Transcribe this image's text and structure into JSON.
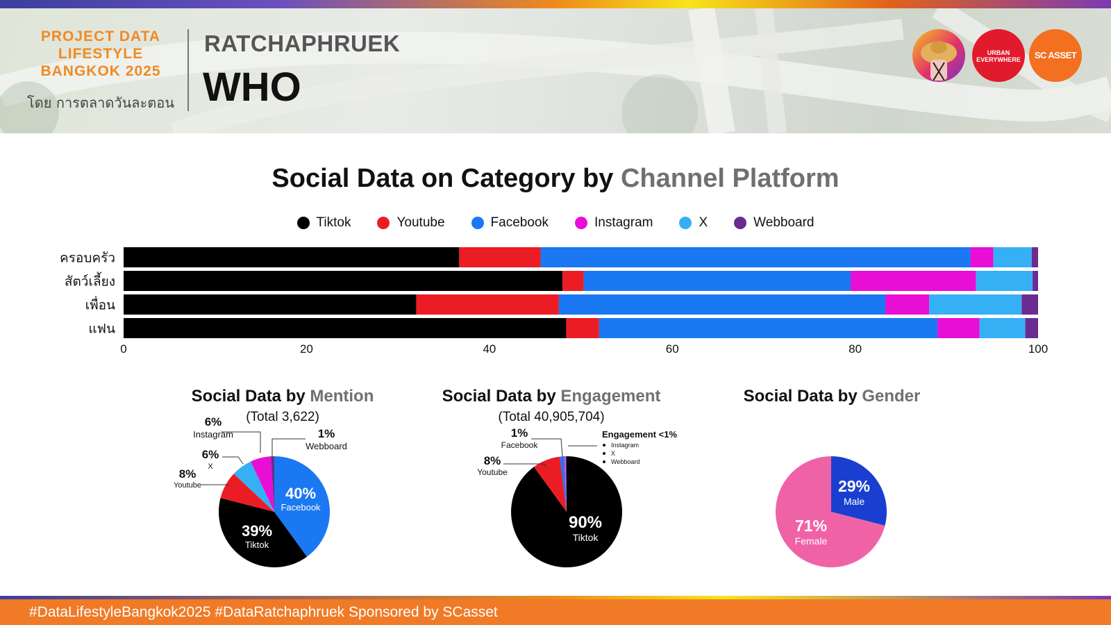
{
  "header": {
    "brand_lines": [
      "PROJECT DATA",
      "LIFESTYLE",
      "BANGKOK 2025"
    ],
    "brand_sub": "โดย การตลาดวันละตอน",
    "place": "RATCHAPHRUEK",
    "section": "WHO",
    "logos": [
      {
        "name": "creator-avatar-logo",
        "text": ""
      },
      {
        "name": "urban-everywhere-logo",
        "text": "URBAN EVERYWHERE"
      },
      {
        "name": "sc-asset-logo",
        "text": "SC ASSET"
      }
    ]
  },
  "main_title": {
    "prefix": "Social Data on Category by ",
    "highlight": "Channel Platform"
  },
  "colors": {
    "Tiktok": "#000000",
    "Youtube": "#ec1c24",
    "Facebook": "#1a78f2",
    "Instagram": "#e80ed6",
    "X": "#35b0f5",
    "Webboard": "#6b2c91",
    "Male": "#1a3fd0",
    "Female": "#f062a6"
  },
  "chart_data": [
    {
      "type": "bar",
      "stacked": true,
      "orientation": "horizontal",
      "title": "Social Data on Category by Channel Platform",
      "categories": [
        "ครอบครัว",
        "สัตว์เลี้ยง",
        "เพื่อน",
        "แฟน"
      ],
      "series": [
        {
          "name": "Tiktok",
          "values": [
            36.7,
            48.0,
            32.0,
            48.4
          ]
        },
        {
          "name": "Youtube",
          "values": [
            8.9,
            2.3,
            15.6,
            3.6
          ]
        },
        {
          "name": "Facebook",
          "values": [
            47.0,
            29.2,
            35.7,
            37.0
          ]
        },
        {
          "name": "Instagram",
          "values": [
            2.5,
            13.7,
            4.8,
            4.6
          ]
        },
        {
          "name": "X",
          "values": [
            4.2,
            6.2,
            10.1,
            5.0
          ]
        },
        {
          "name": "Webboard",
          "values": [
            0.7,
            0.6,
            1.8,
            1.4
          ]
        }
      ],
      "xlim": [
        0,
        100
      ],
      "xticks": [
        0,
        20,
        40,
        60,
        80,
        100
      ],
      "legend": "top-center",
      "grid": false
    },
    {
      "type": "pie",
      "title_prefix": "Social Data by ",
      "title_highlight": "Mention",
      "total_label": "(Total 3,622)",
      "slices": [
        {
          "name": "Facebook",
          "value": 40,
          "label": "40%"
        },
        {
          "name": "Tiktok",
          "value": 39,
          "label": "39%"
        },
        {
          "name": "Youtube",
          "value": 8,
          "label": "8%"
        },
        {
          "name": "X",
          "value": 6,
          "label": "6%"
        },
        {
          "name": "Instagram",
          "value": 6,
          "label": "6%"
        },
        {
          "name": "Webboard",
          "value": 1,
          "label": "1%"
        }
      ]
    },
    {
      "type": "pie",
      "title_prefix": "Social Data by ",
      "title_highlight": "Engagement",
      "total_label": "(Total 40,905,704)",
      "slices": [
        {
          "name": "Tiktok",
          "value": 90.0,
          "label": "90%"
        },
        {
          "name": "Youtube",
          "value": 8.0,
          "label": "8%"
        },
        {
          "name": "Facebook",
          "value": 1.0,
          "label": "1%"
        },
        {
          "name": "Instagram",
          "value": 0.4,
          "label": ""
        },
        {
          "name": "X",
          "value": 0.3,
          "label": ""
        },
        {
          "name": "Webboard",
          "value": 0.3,
          "label": ""
        }
      ],
      "note": {
        "title": "Engagement <1%",
        "items": [
          "Instagram",
          "X",
          "Webboard"
        ]
      }
    },
    {
      "type": "pie",
      "title_prefix": "Social Data by ",
      "title_highlight": "Gender",
      "total_label": "",
      "slices": [
        {
          "name": "Female",
          "value": 71,
          "label": "71%"
        },
        {
          "name": "Male",
          "value": 29,
          "label": "29%"
        }
      ]
    }
  ],
  "footer": {
    "text": "#DataLifestyleBangkok2025 #DataRatchaphruek Sponsored by SCasset"
  }
}
